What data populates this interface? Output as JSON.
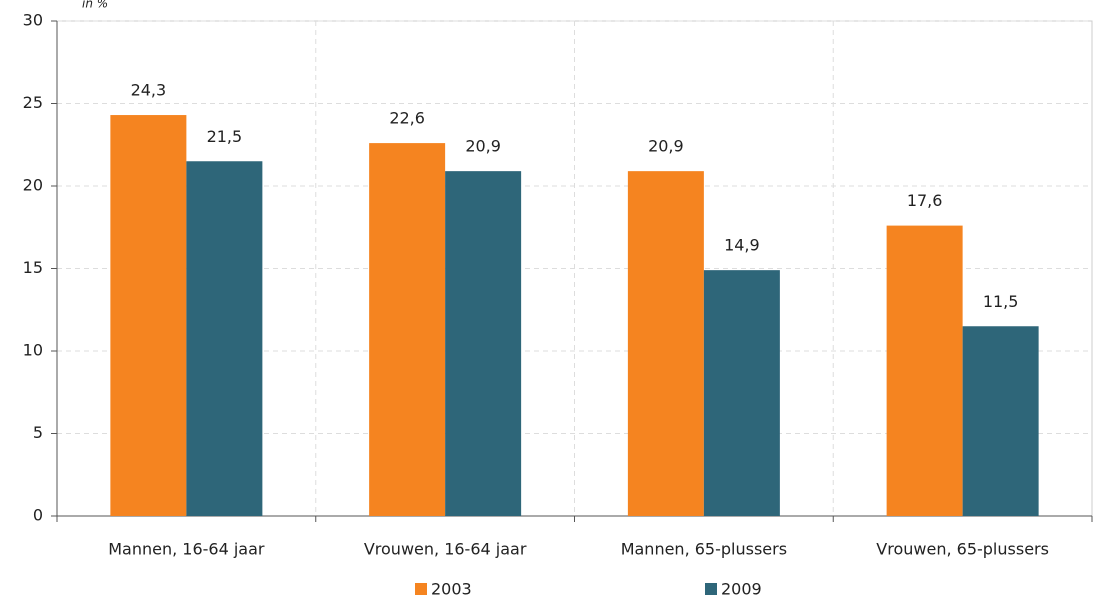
{
  "chart_data": {
    "type": "bar",
    "y_label": "in %",
    "categories": [
      "Mannen, 16-64 jaar",
      "Vrouwen, 16-64 jaar",
      "Mannen, 65-plussers",
      "Vrouwen, 65-plussers"
    ],
    "series": [
      {
        "name": "2003",
        "color": "#f58420",
        "values": [
          24.3,
          22.6,
          20.9,
          17.6
        ],
        "value_labels": [
          "24,3",
          "22,6",
          "20,9",
          "17,6"
        ]
      },
      {
        "name": "2009",
        "color": "#2e6679",
        "values": [
          21.5,
          20.9,
          14.9,
          11.5
        ],
        "value_labels": [
          "21,5",
          "20,9",
          "14,9",
          "11,5"
        ]
      }
    ],
    "ylim": [
      0,
      30
    ],
    "yticks": [
      0,
      5,
      10,
      15,
      20,
      25,
      30
    ],
    "grid": true,
    "legend": "bottom"
  }
}
